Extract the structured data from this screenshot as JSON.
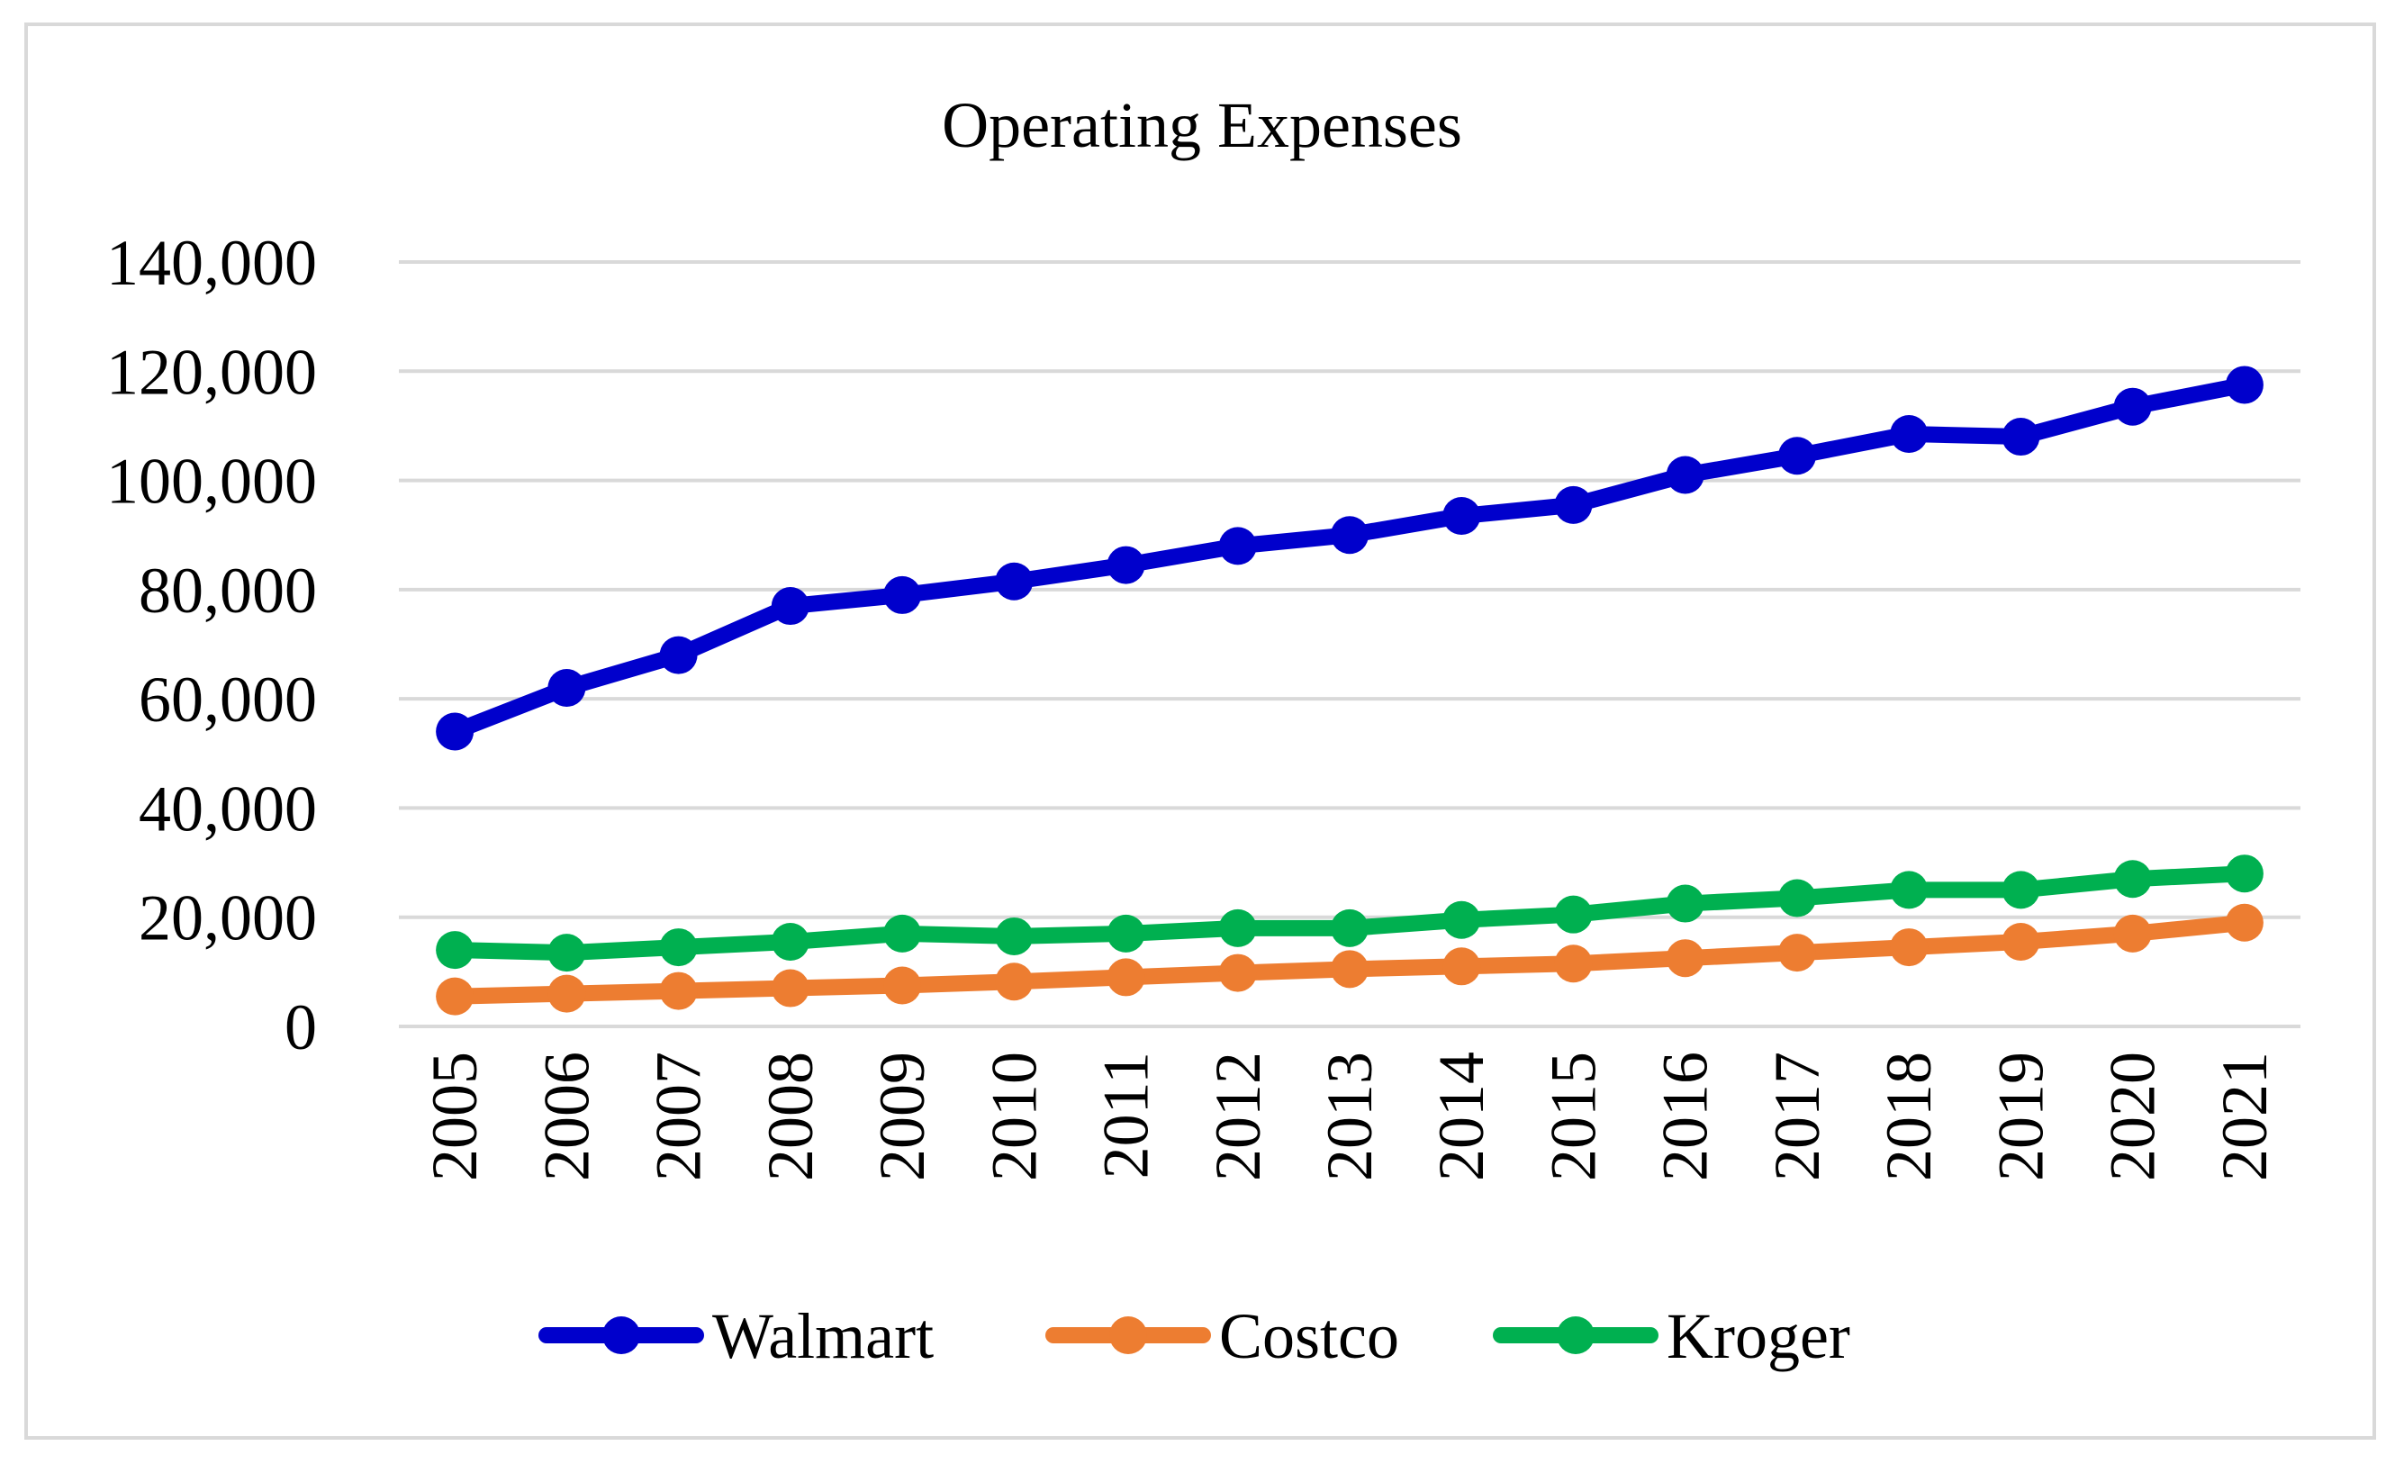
{
  "chart_data": {
    "type": "line",
    "title": "Operating Expenses",
    "xlabel": "",
    "ylabel": "",
    "categories": [
      "2005",
      "2006",
      "2007",
      "2008",
      "2009",
      "2010",
      "2011",
      "2012",
      "2013",
      "2014",
      "2015",
      "2016",
      "2017",
      "2018",
      "2019",
      "2020",
      "2021"
    ],
    "ylim": [
      0,
      140000
    ],
    "yticks": [
      0,
      20000,
      40000,
      60000,
      80000,
      100000,
      120000,
      140000
    ],
    "ytick_labels": [
      "0",
      "20,000",
      "40,000",
      "60,000",
      "80,000",
      "100,000",
      "120,000",
      "140,000"
    ],
    "grid": true,
    "legend_position": "bottom",
    "series": [
      {
        "name": "Walmart",
        "color": "#0000cc",
        "values": [
          54000,
          62000,
          68000,
          77000,
          79000,
          81500,
          84500,
          88000,
          90000,
          93500,
          95500,
          101000,
          104500,
          108500,
          108000,
          113500,
          117500
        ]
      },
      {
        "name": "Costco",
        "color": "#ed7d31",
        "values": [
          5500,
          6000,
          6500,
          7000,
          7500,
          8200,
          9000,
          9800,
          10500,
          11000,
          11500,
          12500,
          13500,
          14500,
          15500,
          17000,
          19000
        ]
      },
      {
        "name": "Kroger",
        "color": "#00b050",
        "values": [
          14000,
          13500,
          14500,
          15500,
          17000,
          16500,
          17000,
          18000,
          18000,
          19500,
          20500,
          22500,
          23500,
          25000,
          25000,
          27000,
          28000
        ]
      }
    ]
  }
}
